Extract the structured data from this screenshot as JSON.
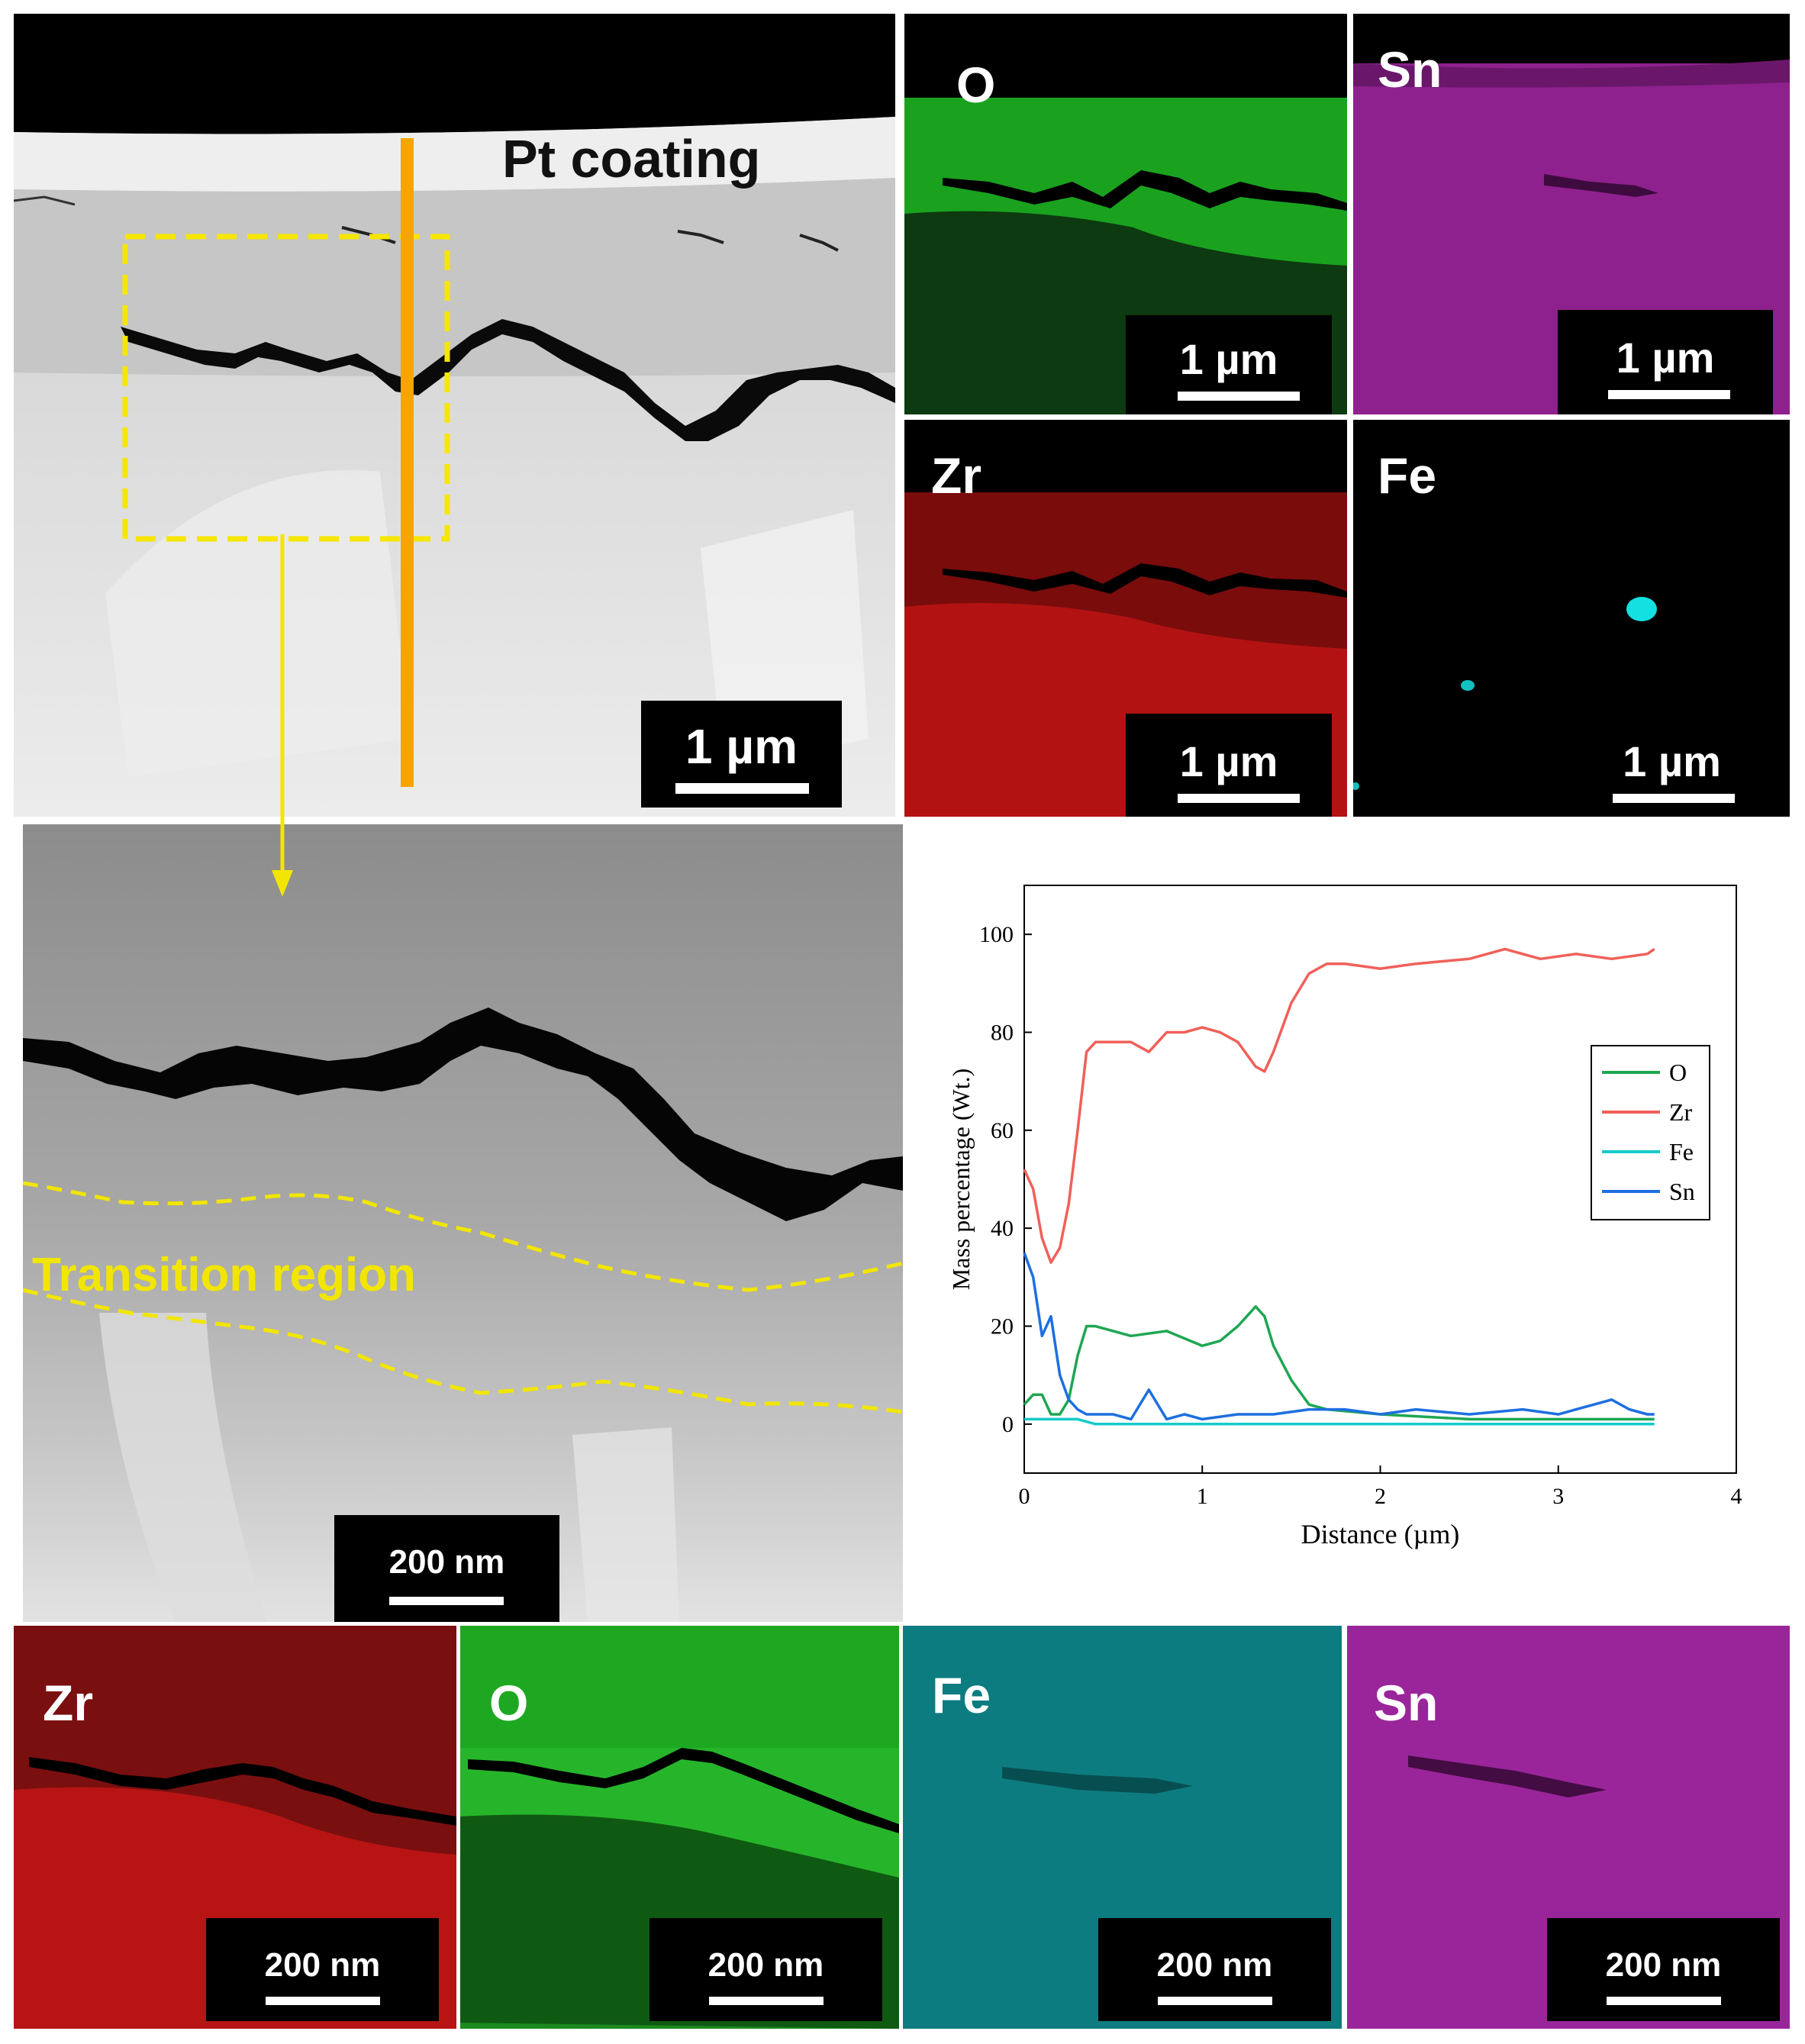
{
  "top_image": {
    "pt_label": "Pt coating",
    "scale": "1 µm"
  },
  "map_grid_top": [
    {
      "element": "O",
      "scale": "1 µm",
      "color": "#19a81e"
    },
    {
      "element": "Sn",
      "scale": "1 µm",
      "color": "#b02ab4"
    },
    {
      "element": "Zr",
      "scale": "1 µm",
      "color": "#c81414"
    },
    {
      "element": "Fe",
      "scale": "1 µm",
      "color": "#08d6d6"
    }
  ],
  "zoom_image": {
    "region_label": "Transition region",
    "scale": "200 nm"
  },
  "map_row_bottom": [
    {
      "element": "Zr",
      "scale": "200 nm",
      "color": "#c81414"
    },
    {
      "element": "O",
      "scale": "200 nm",
      "color": "#19a81e"
    },
    {
      "element": "Fe",
      "scale": "200 nm",
      "color": "#08d6d6"
    },
    {
      "element": "Sn",
      "scale": "200 nm",
      "color": "#b02ab4"
    }
  ],
  "chart_data": {
    "type": "line",
    "xlabel": "Distance (µm)",
    "ylabel": "Mass percentage (Wt.)",
    "xlim": [
      0,
      4
    ],
    "ylim": [
      -10,
      110
    ],
    "xticks": [
      0,
      1,
      2,
      3,
      4
    ],
    "yticks": [
      0,
      20,
      40,
      60,
      80,
      100
    ],
    "legend_position": "right",
    "series": [
      {
        "name": "O",
        "color": "#1fa653",
        "x": [
          0,
          0.05,
          0.1,
          0.15,
          0.2,
          0.25,
          0.3,
          0.35,
          0.4,
          0.6,
          0.8,
          1.0,
          1.1,
          1.2,
          1.25,
          1.3,
          1.35,
          1.4,
          1.5,
          1.6,
          1.7,
          2.0,
          2.5,
          3.0,
          3.54
        ],
        "y": [
          4,
          6,
          6,
          2,
          2,
          5,
          14,
          20,
          20,
          18,
          19,
          16,
          17,
          20,
          22,
          24,
          22,
          16,
          9,
          4,
          3,
          2,
          1,
          1,
          1
        ]
      },
      {
        "name": "Zr",
        "color": "#f0605a",
        "x": [
          0,
          0.05,
          0.1,
          0.15,
          0.2,
          0.25,
          0.3,
          0.35,
          0.4,
          0.5,
          0.6,
          0.7,
          0.8,
          0.9,
          1.0,
          1.1,
          1.2,
          1.3,
          1.35,
          1.4,
          1.5,
          1.6,
          1.7,
          1.8,
          2.0,
          2.2,
          2.5,
          2.7,
          2.9,
          3.1,
          3.3,
          3.5,
          3.54
        ],
        "y": [
          52,
          48,
          38,
          33,
          36,
          45,
          60,
          76,
          78,
          78,
          78,
          76,
          80,
          80,
          81,
          80,
          78,
          73,
          72,
          76,
          86,
          92,
          94,
          94,
          93,
          94,
          95,
          97,
          95,
          96,
          95,
          96,
          97
        ]
      },
      {
        "name": "Fe",
        "color": "#16cbcb",
        "x": [
          0,
          0.1,
          0.2,
          0.3,
          0.4,
          1.0,
          2.0,
          3.0,
          3.54
        ],
        "y": [
          1,
          1,
          1,
          1,
          0,
          0,
          0,
          0,
          0
        ]
      },
      {
        "name": "Sn",
        "color": "#1d6fe0",
        "x": [
          0,
          0.05,
          0.1,
          0.15,
          0.2,
          0.25,
          0.3,
          0.35,
          0.4,
          0.5,
          0.6,
          0.7,
          0.8,
          0.9,
          1.0,
          1.2,
          1.4,
          1.6,
          1.8,
          2.0,
          2.2,
          2.5,
          2.8,
          3.0,
          3.1,
          3.2,
          3.3,
          3.4,
          3.5,
          3.54
        ],
        "y": [
          35,
          30,
          18,
          22,
          10,
          5,
          3,
          2,
          2,
          2,
          1,
          7,
          1,
          2,
          1,
          2,
          2,
          3,
          3,
          2,
          3,
          2,
          3,
          2,
          3,
          4,
          5,
          3,
          2,
          2
        ]
      }
    ]
  }
}
